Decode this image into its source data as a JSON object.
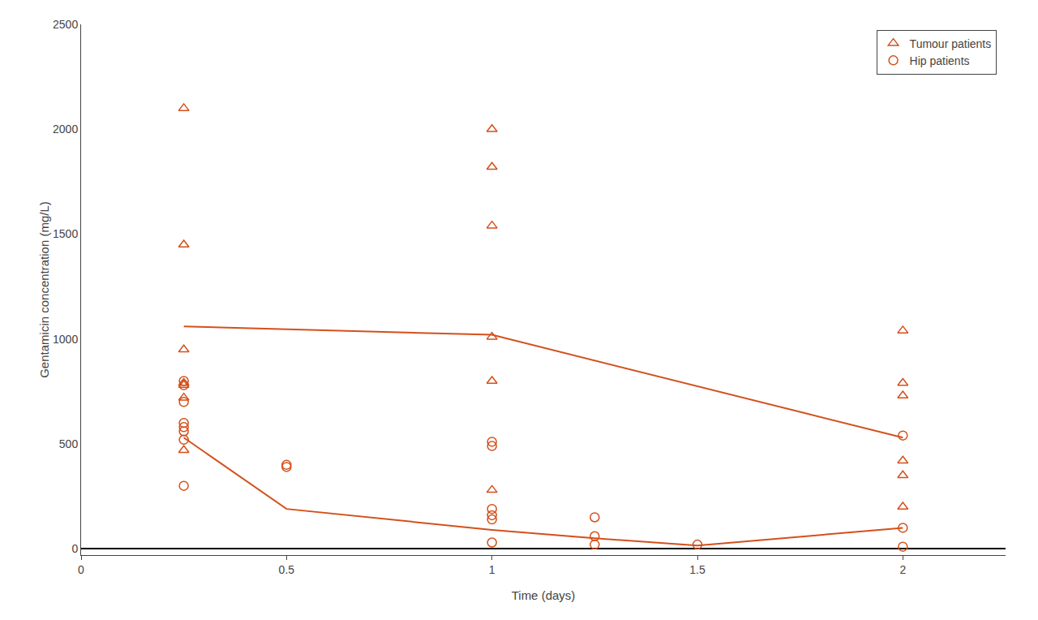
{
  "chart_data": {
    "type": "scatter",
    "xlabel": "Time (days)",
    "ylabel": "Gentamicin concentration (mg/L)",
    "xlim": [
      0,
      2.25
    ],
    "ylim": [
      -30,
      2500
    ],
    "xticks": [
      0,
      0.5,
      1,
      1.5,
      2
    ],
    "yticks": [
      0,
      500,
      1000,
      1500,
      2000,
      2500
    ],
    "grid": false,
    "legend": "upper right",
    "series": [
      {
        "name": "Tumour patients",
        "type": "scatter",
        "marker": "triangle",
        "color": "#D4501A",
        "x": [
          0.25,
          0.25,
          0.25,
          0.25,
          0.25,
          0.25,
          0.25,
          1.0,
          1.0,
          1.0,
          1.0,
          1.0,
          1.0,
          2.0,
          2.0,
          2.0,
          2.0,
          2.0,
          2.0
        ],
        "values": [
          2100,
          1450,
          950,
          790,
          780,
          720,
          470,
          2000,
          1820,
          1540,
          1010,
          800,
          280,
          1040,
          790,
          730,
          420,
          350,
          200
        ]
      },
      {
        "name": "Hip patients",
        "type": "scatter",
        "marker": "circle",
        "color": "#D4501A",
        "x": [
          0.25,
          0.25,
          0.25,
          0.25,
          0.25,
          0.25,
          0.25,
          0.25,
          0.5,
          0.5,
          1.0,
          1.0,
          1.0,
          1.0,
          1.0,
          1.0,
          1.25,
          1.25,
          1.25,
          1.5,
          2.0,
          2.0,
          2.0
        ],
        "values": [
          800,
          780,
          700,
          600,
          580,
          560,
          520,
          300,
          400,
          390,
          510,
          490,
          190,
          160,
          140,
          30,
          150,
          60,
          20,
          20,
          540,
          100,
          10
        ]
      },
      {
        "type": "line",
        "line_style": "solid",
        "color": "#D4501A",
        "x": [
          0.25,
          1.0,
          2.0
        ],
        "values": [
          1060,
          1020,
          530
        ]
      },
      {
        "type": "line",
        "line_style": "solid",
        "color": "#D4501A",
        "x": [
          0.25,
          0.5,
          1.0,
          1.25,
          1.5,
          2.0
        ],
        "values": [
          530,
          190,
          90,
          50,
          15,
          100
        ]
      }
    ]
  }
}
